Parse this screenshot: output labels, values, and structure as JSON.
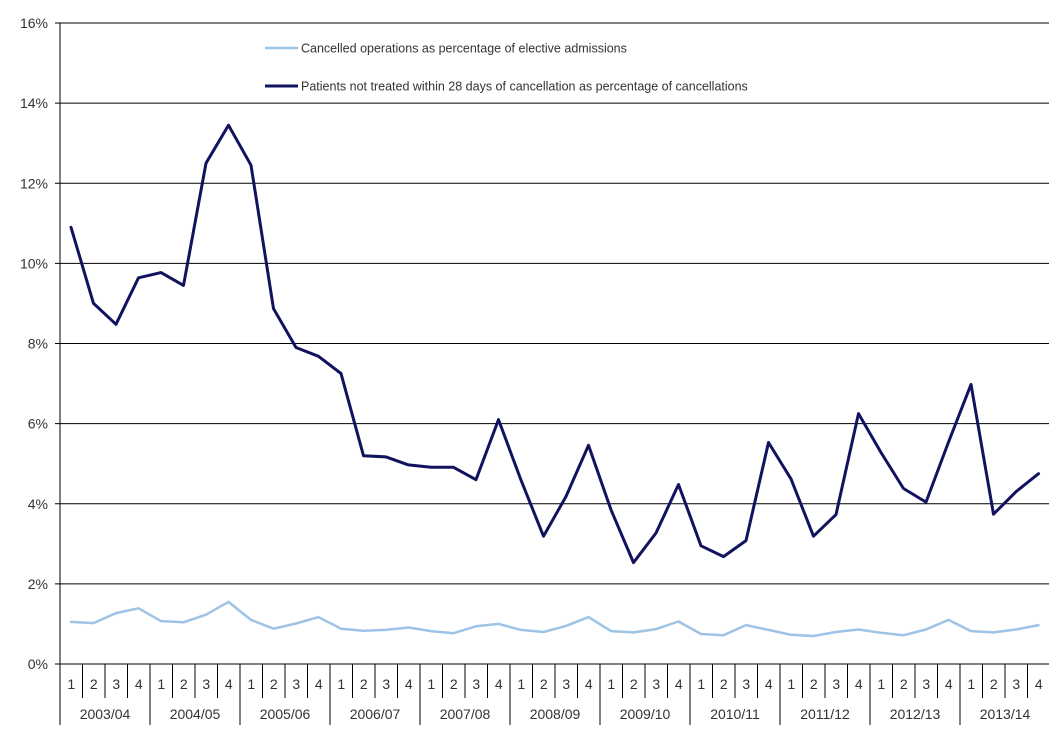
{
  "chart_data": {
    "type": "line",
    "title": "",
    "xlabel": "",
    "ylabel": "",
    "ylim": [
      0,
      16
    ],
    "y_tick_labels": [
      "0%",
      "2%",
      "4%",
      "6%",
      "8%",
      "10%",
      "12%",
      "14%",
      "16%"
    ],
    "y_unit": "%",
    "grid": "horizontal",
    "legend_position": "top",
    "quarter_labels": [
      "1",
      "2",
      "3",
      "4"
    ],
    "years": [
      "2003/04",
      "2004/05",
      "2005/06",
      "2006/07",
      "2007/08",
      "2008/09",
      "2009/10",
      "2010/11",
      "2011/12",
      "2012/13",
      "2013/14"
    ],
    "x": [
      "2003/04 Q1",
      "2003/04 Q2",
      "2003/04 Q3",
      "2003/04 Q4",
      "2004/05 Q1",
      "2004/05 Q2",
      "2004/05 Q3",
      "2004/05 Q4",
      "2005/06 Q1",
      "2005/06 Q2",
      "2005/06 Q3",
      "2005/06 Q4",
      "2006/07 Q1",
      "2006/07 Q2",
      "2006/07 Q3",
      "2006/07 Q4",
      "2007/08 Q1",
      "2007/08 Q2",
      "2007/08 Q3",
      "2007/08 Q4",
      "2008/09 Q1",
      "2008/09 Q2",
      "2008/09 Q3",
      "2008/09 Q4",
      "2009/10 Q1",
      "2009/10 Q2",
      "2009/10 Q3",
      "2009/10 Q4",
      "2010/11 Q1",
      "2010/11 Q2",
      "2010/11 Q3",
      "2010/11 Q4",
      "2011/12 Q1",
      "2011/12 Q2",
      "2011/12 Q3",
      "2011/12 Q4",
      "2012/13 Q1",
      "2012/13 Q2",
      "2012/13 Q3",
      "2012/13 Q4",
      "2013/14 Q1",
      "2013/14 Q2",
      "2013/14 Q3",
      "2013/14 Q4"
    ],
    "series": [
      {
        "name": "Cancelled operations as percentage of elective admissions",
        "color": "#9DC3E6",
        "values": [
          1.05,
          1.02,
          1.27,
          1.39,
          1.07,
          1.04,
          1.23,
          1.55,
          1.1,
          0.88,
          1.01,
          1.17,
          0.88,
          0.83,
          0.85,
          0.91,
          0.82,
          0.77,
          0.94,
          1.0,
          0.85,
          0.8,
          0.95,
          1.17,
          0.82,
          0.79,
          0.87,
          1.06,
          0.75,
          0.72,
          0.97,
          0.85,
          0.73,
          0.7,
          0.8,
          0.86,
          0.78,
          0.72,
          0.86,
          1.1,
          0.82,
          0.79,
          0.86,
          0.97
        ]
      },
      {
        "name": "Patients not treated within 28 days of cancellation as percentage of cancellations",
        "color": "#12135E",
        "values": [
          10.9,
          9.0,
          8.48,
          9.64,
          9.77,
          9.45,
          12.5,
          13.45,
          12.45,
          8.87,
          7.9,
          7.68,
          7.25,
          5.2,
          5.17,
          4.97,
          4.91,
          4.91,
          4.6,
          6.1,
          4.59,
          3.19,
          4.18,
          5.46,
          3.85,
          2.53,
          3.27,
          4.48,
          2.95,
          2.68,
          3.08,
          5.53,
          4.62,
          3.19,
          3.73,
          6.25,
          5.28,
          4.38,
          4.04,
          5.54,
          6.98,
          3.74,
          4.3,
          4.75
        ]
      }
    ]
  }
}
